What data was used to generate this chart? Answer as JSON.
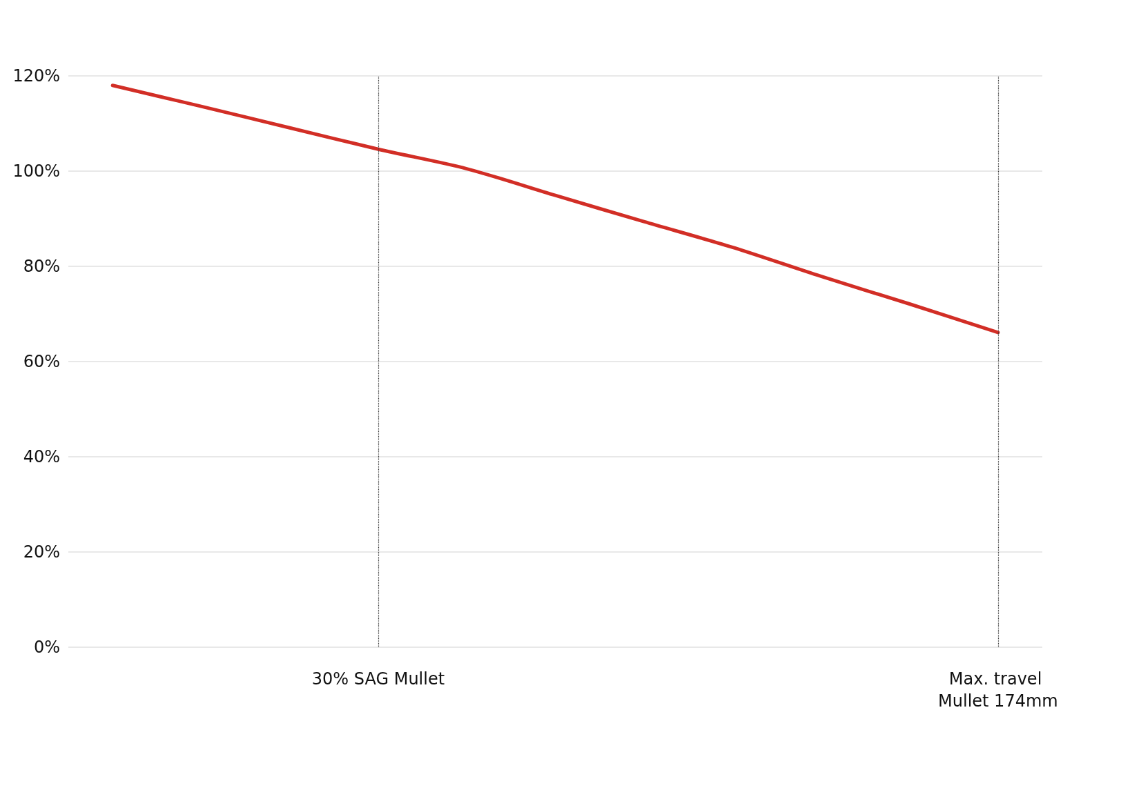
{
  "chart_data": {
    "type": "line",
    "categories": [
      null,
      null,
      null,
      "30% SAG Mullet",
      null,
      null,
      null,
      null,
      null,
      null,
      "Max. travel Mullet 174mm"
    ],
    "series": [
      {
        "color": "#d22e26",
        "values": [
          118,
          113.6,
          109.1,
          104.6,
          100.5,
          94.9,
          89.4,
          84,
          77.9,
          72.1,
          66.1
        ]
      }
    ],
    "ylim": [
      0,
      120
    ],
    "yticks": [
      {
        "value": 0,
        "label": "0%"
      },
      {
        "value": 20,
        "label": "20%"
      },
      {
        "value": 40,
        "label": "40%"
      },
      {
        "value": 60,
        "label": "60%"
      },
      {
        "value": 80,
        "label": "80%"
      },
      {
        "value": 100,
        "label": "100%"
      },
      {
        "value": 120,
        "label": "120%"
      }
    ],
    "grid": "y",
    "marker": "none",
    "line_style": "solid",
    "ref_lines": [
      {
        "axis": "x",
        "value": "30% SAG Mullet",
        "color": "#333333",
        "line_style": "dotted"
      },
      {
        "axis": "x",
        "value": "Max. travel Mullet 174mm",
        "color": "#333333",
        "line_style": "dotted"
      }
    ]
  }
}
